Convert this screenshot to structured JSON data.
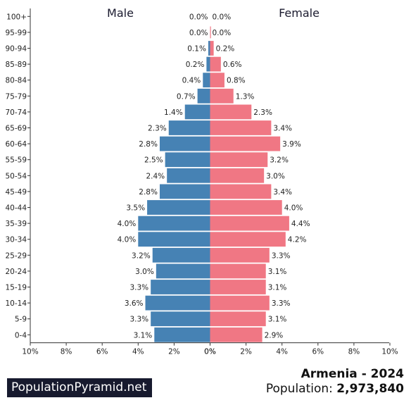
{
  "chart_data": {
    "type": "bar",
    "orientation": "population-pyramid",
    "categories": [
      "0-4",
      "5-9",
      "10-14",
      "15-19",
      "20-24",
      "25-29",
      "30-34",
      "35-39",
      "40-44",
      "45-49",
      "50-54",
      "55-59",
      "60-64",
      "65-69",
      "70-74",
      "75-79",
      "80-84",
      "85-89",
      "90-94",
      "95-99",
      "100+"
    ],
    "series": [
      {
        "name": "Male",
        "color": "#4682b4",
        "values": [
          3.1,
          3.3,
          3.6,
          3.3,
          3.0,
          3.2,
          4.0,
          4.0,
          3.5,
          2.8,
          2.4,
          2.5,
          2.8,
          2.3,
          1.4,
          0.7,
          0.4,
          0.2,
          0.1,
          0.0,
          0.0
        ],
        "labels": [
          "3.1%",
          "3.3%",
          "3.6%",
          "3.3%",
          "3.0%",
          "3.2%",
          "4.0%",
          "4.0%",
          "3.5%",
          "2.8%",
          "2.4%",
          "2.5%",
          "2.8%",
          "2.3%",
          "1.4%",
          "0.7%",
          "0.4%",
          "0.2%",
          "0.1%",
          "0.0%",
          "0.0%"
        ]
      },
      {
        "name": "Female",
        "color": "#f07784",
        "values": [
          2.9,
          3.1,
          3.3,
          3.1,
          3.1,
          3.3,
          4.2,
          4.4,
          4.0,
          3.4,
          3.0,
          3.2,
          3.9,
          3.4,
          2.3,
          1.3,
          0.8,
          0.6,
          0.2,
          0.0,
          0.0
        ],
        "labels": [
          "2.9%",
          "3.1%",
          "3.3%",
          "3.1%",
          "3.1%",
          "3.3%",
          "4.2%",
          "4.4%",
          "4.0%",
          "3.4%",
          "3.0%",
          "3.2%",
          "3.9%",
          "3.4%",
          "2.3%",
          "1.3%",
          "0.8%",
          "0.6%",
          "0.2%",
          "0.0%",
          "0.0%"
        ]
      }
    ],
    "xlim": [
      0,
      10
    ],
    "x_ticks_left": [
      "10%",
      "8%",
      "6%",
      "4%",
      "2%",
      "0%"
    ],
    "x_ticks_right": [
      "0%",
      "2%",
      "4%",
      "6%",
      "8%",
      "10%"
    ],
    "legend": "top"
  },
  "branding": {
    "site": "PopulationPyramid.net"
  },
  "header": {
    "country_year": "Armenia - 2024",
    "population_label": "Population: ",
    "population_value": "2,973,840"
  }
}
